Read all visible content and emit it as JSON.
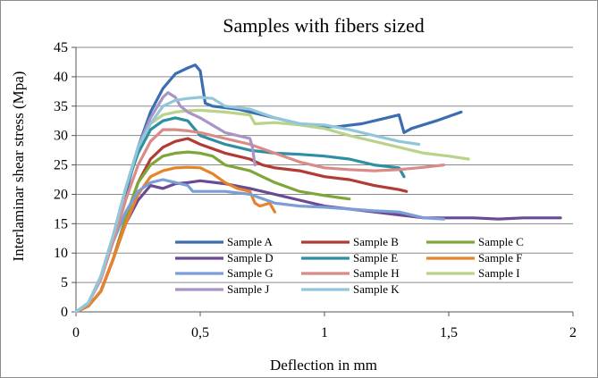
{
  "chart_data": {
    "type": "line",
    "title": "Samples with fibers sized",
    "xlabel": "Deflection in mm",
    "ylabel": "Interlaminar shear stress (Mpa)",
    "xlim": [
      0,
      2
    ],
    "ylim": [
      0,
      45
    ],
    "xticks": [
      0,
      0.5,
      1,
      1.5,
      2
    ],
    "xtick_labels": [
      "0",
      "0,5",
      "1",
      "1,5",
      "2"
    ],
    "yticks": [
      0,
      5,
      10,
      15,
      20,
      25,
      30,
      35,
      40,
      45
    ],
    "ytick_labels": [
      "0",
      "5",
      "10",
      "15",
      "20",
      "25",
      "30",
      "35",
      "40",
      "45"
    ],
    "grid": "horizontal",
    "legend_position": "lower-right inside plot",
    "series": [
      {
        "name": "Sample A",
        "color": "#3a6eb0",
        "x": [
          0,
          0.05,
          0.1,
          0.15,
          0.2,
          0.25,
          0.3,
          0.35,
          0.4,
          0.45,
          0.48,
          0.5,
          0.52,
          0.55,
          0.65,
          0.75,
          0.85,
          0.95,
          1.05,
          1.15,
          1.25,
          1.3,
          1.32,
          1.35,
          1.45,
          1.55
        ],
        "y": [
          0,
          1.5,
          6,
          12,
          20,
          28,
          34,
          38,
          40.5,
          41.5,
          42,
          41,
          35.5,
          35,
          34.5,
          33.5,
          32.5,
          31.5,
          31.5,
          32,
          33,
          33.5,
          30.5,
          31.2,
          32.5,
          34
        ]
      },
      {
        "name": "Sample B",
        "color": "#b23b36",
        "x": [
          0,
          0.05,
          0.1,
          0.15,
          0.2,
          0.25,
          0.3,
          0.35,
          0.4,
          0.45,
          0.5,
          0.6,
          0.7,
          0.75,
          0.8,
          0.9,
          1.0,
          1.1,
          1.2,
          1.3,
          1.33
        ],
        "y": [
          0,
          1,
          3.5,
          9,
          16,
          22,
          26,
          28,
          29,
          29.5,
          28.5,
          27,
          26,
          25,
          24.5,
          24,
          23,
          22.5,
          21.5,
          20.8,
          20.5
        ]
      },
      {
        "name": "Sample C",
        "color": "#7fa63a",
        "x": [
          0,
          0.05,
          0.1,
          0.15,
          0.2,
          0.25,
          0.3,
          0.35,
          0.4,
          0.45,
          0.5,
          0.55,
          0.6,
          0.7,
          0.8,
          0.9,
          1.0,
          1.1
        ],
        "y": [
          0,
          1,
          3.5,
          9,
          16,
          22,
          25,
          26.5,
          27,
          27.2,
          27,
          26.5,
          25,
          24,
          22,
          20.5,
          19.8,
          19.2
        ]
      },
      {
        "name": "Sample D",
        "color": "#6a4a94",
        "x": [
          0,
          0.05,
          0.1,
          0.15,
          0.2,
          0.25,
          0.3,
          0.35,
          0.4,
          0.45,
          0.5,
          0.6,
          0.7,
          0.8,
          0.9,
          1.0,
          1.1,
          1.2,
          1.3,
          1.4,
          1.5,
          1.6,
          1.7,
          1.8,
          1.95
        ],
        "y": [
          0,
          1,
          3.5,
          9,
          15,
          19,
          21.5,
          21,
          21.8,
          22,
          22.3,
          21.8,
          21,
          20,
          19,
          18,
          17.5,
          17,
          16.5,
          16,
          16,
          16,
          15.8,
          16,
          16
        ]
      },
      {
        "name": "Sample E",
        "color": "#2e8fa3",
        "x": [
          0,
          0.05,
          0.1,
          0.15,
          0.2,
          0.25,
          0.3,
          0.35,
          0.4,
          0.45,
          0.5,
          0.6,
          0.7,
          0.8,
          0.9,
          1.0,
          1.1,
          1.2,
          1.3,
          1.32
        ],
        "y": [
          0,
          1.5,
          6,
          13,
          21,
          27,
          31,
          32.5,
          33,
          32.5,
          30,
          28.5,
          27.5,
          27,
          26.8,
          26.5,
          26,
          25,
          24.5,
          23
        ]
      },
      {
        "name": "Sample F",
        "color": "#e8832a",
        "x": [
          0,
          0.05,
          0.1,
          0.15,
          0.2,
          0.25,
          0.3,
          0.35,
          0.4,
          0.45,
          0.5,
          0.55,
          0.6,
          0.65,
          0.7,
          0.72,
          0.74,
          0.78,
          0.8
        ],
        "y": [
          0,
          1,
          3.5,
          9,
          15,
          20,
          23,
          24,
          24.5,
          24.6,
          24.5,
          23.5,
          22,
          21,
          20.5,
          18.5,
          18,
          18.5,
          17
        ]
      },
      {
        "name": "Sample G",
        "color": "#7b9ed6",
        "x": [
          0,
          0.05,
          0.1,
          0.15,
          0.2,
          0.25,
          0.3,
          0.35,
          0.4,
          0.45,
          0.47,
          0.5,
          0.6,
          0.7,
          0.8,
          0.9,
          1.0,
          1.1,
          1.2,
          1.3,
          1.4,
          1.48
        ],
        "y": [
          0,
          1.5,
          6,
          12,
          17,
          20.5,
          22,
          22.5,
          22,
          21.5,
          20.5,
          20.5,
          20.5,
          20,
          18.5,
          18,
          17.8,
          17.5,
          17.2,
          17,
          16,
          15.8
        ]
      },
      {
        "name": "Sample H",
        "color": "#d98b87",
        "x": [
          0,
          0.05,
          0.1,
          0.15,
          0.2,
          0.25,
          0.3,
          0.35,
          0.4,
          0.45,
          0.5,
          0.6,
          0.7,
          0.8,
          0.9,
          1.0,
          1.1,
          1.2,
          1.3,
          1.4,
          1.48
        ],
        "y": [
          0,
          1.5,
          5.5,
          12,
          19,
          25,
          29,
          31,
          31,
          30.8,
          30.5,
          29.5,
          28.5,
          27,
          25.5,
          24.5,
          24.2,
          24,
          24.2,
          24.6,
          25
        ]
      },
      {
        "name": "Sample I",
        "color": "#b9d38a",
        "x": [
          0,
          0.05,
          0.1,
          0.15,
          0.2,
          0.25,
          0.3,
          0.35,
          0.4,
          0.45,
          0.5,
          0.6,
          0.7,
          0.72,
          0.8,
          0.9,
          1.0,
          1.1,
          1.2,
          1.3,
          1.4,
          1.5,
          1.58
        ],
        "y": [
          0,
          1.5,
          6,
          13,
          21,
          28,
          32,
          33.5,
          34,
          34.2,
          34.3,
          34,
          33.5,
          32,
          32.2,
          31.8,
          31.2,
          30,
          29,
          28,
          27,
          26.5,
          26
        ]
      },
      {
        "name": "Sample J",
        "color": "#a994c6",
        "x": [
          0,
          0.05,
          0.1,
          0.15,
          0.2,
          0.25,
          0.3,
          0.35,
          0.37,
          0.4,
          0.42,
          0.45,
          0.5,
          0.6,
          0.7,
          0.71,
          0.72
        ],
        "y": [
          0,
          1.5,
          6,
          13,
          21,
          28,
          33,
          36.5,
          37.3,
          36.5,
          35,
          34,
          33,
          30.5,
          29.5,
          28,
          25
        ]
      },
      {
        "name": "Sample K",
        "color": "#92c7db",
        "x": [
          0,
          0.05,
          0.1,
          0.15,
          0.2,
          0.25,
          0.3,
          0.35,
          0.4,
          0.45,
          0.5,
          0.55,
          0.6,
          0.7,
          0.8,
          0.9,
          1.0,
          1.1,
          1.2,
          1.3,
          1.38
        ],
        "y": [
          0,
          1.5,
          6,
          13,
          21,
          28,
          32,
          35,
          36,
          36.3,
          36.5,
          36.3,
          35,
          34.5,
          33,
          32,
          31.8,
          31,
          30,
          29,
          28.5
        ]
      }
    ]
  }
}
